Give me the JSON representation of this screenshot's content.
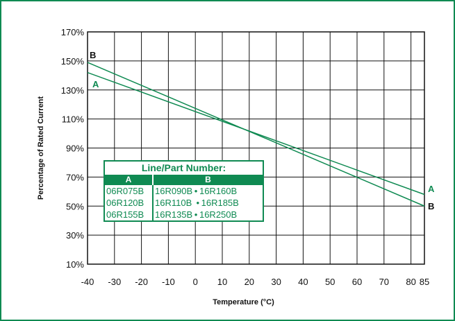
{
  "chart_data": {
    "type": "line",
    "xlabel": "Temperature (°C)",
    "ylabel": "Percentage of Rated Current",
    "xlim": [
      -40,
      85
    ],
    "ylim": [
      10,
      170
    ],
    "x_ticks": [
      "-40",
      "-30",
      "-20",
      "-10",
      "0",
      "10",
      "20",
      "30",
      "40",
      "50",
      "60",
      "70",
      "80",
      "85"
    ],
    "x_tick_values": [
      -40,
      -30,
      -20,
      -10,
      0,
      10,
      20,
      30,
      40,
      50,
      60,
      70,
      80,
      85
    ],
    "y_ticks": [
      "10%",
      "30%",
      "50%",
      "70%",
      "90%",
      "110%",
      "130%",
      "150%",
      "170%"
    ],
    "y_tick_values": [
      10,
      30,
      50,
      70,
      90,
      110,
      130,
      150,
      170
    ],
    "grid": true,
    "series": [
      {
        "name": "A",
        "x": [
          -40,
          85
        ],
        "y": [
          142,
          58
        ]
      },
      {
        "name": "B",
        "x": [
          -40,
          85
        ],
        "y": [
          149,
          50
        ]
      }
    ]
  },
  "legend": {
    "title": "Line/Part Number:",
    "col_a_header": "A",
    "col_b_header": "B",
    "col_a": [
      "06R075B",
      "06R120B",
      "06R155B"
    ],
    "col_b": [
      "16R090B • 16R160B",
      "16R110B  • 16R185B",
      "16R135B • 16R250B"
    ]
  },
  "colors": {
    "line": "#0f8a52",
    "grid": "#111111",
    "label_b": "#111111",
    "label_a": "#0f8a52"
  }
}
